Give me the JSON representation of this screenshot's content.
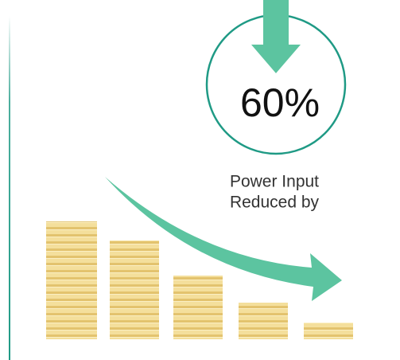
{
  "headline": "60%",
  "caption": {
    "line1": "Power Input",
    "line2": "Reduced by"
  }
}
